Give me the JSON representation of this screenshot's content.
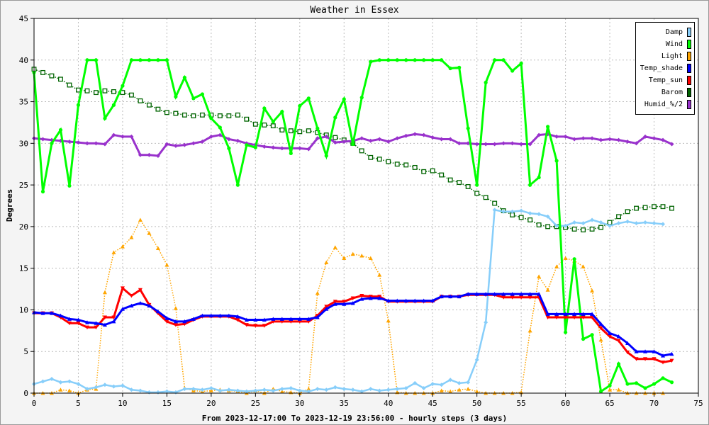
{
  "chart_data": {
    "type": "line",
    "title": "Weather in Essex",
    "xlabel": "From 2023-12-17:00 To 2023-12-19 23:56:00 - hourly steps (3 days)",
    "ylabel": "Degrees",
    "xlim": [
      0,
      75
    ],
    "ylim": [
      0,
      45
    ],
    "xticks": [
      0,
      5,
      10,
      15,
      20,
      25,
      30,
      35,
      40,
      45,
      50,
      55,
      60,
      65,
      70,
      75
    ],
    "yticks": [
      0,
      5,
      10,
      15,
      20,
      25,
      30,
      35,
      40,
      45
    ],
    "grid": true,
    "legend_position": "top-right",
    "series": [
      {
        "name": "Damp",
        "color": "#87cefa",
        "style": "solid",
        "marker": "diamond",
        "values": [
          1.1,
          1.4,
          1.7,
          1.3,
          1.4,
          1.1,
          0.5,
          0.7,
          1.0,
          0.8,
          0.9,
          0.4,
          0.3,
          0.1,
          0.1,
          0.2,
          0.1,
          0.5,
          0.5,
          0.4,
          0.6,
          0.3,
          0.4,
          0.3,
          0.2,
          0.3,
          0.4,
          0.3,
          0.5,
          0.6,
          0.3,
          0.2,
          0.5,
          0.4,
          0.7,
          0.5,
          0.4,
          0.2,
          0.5,
          0.3,
          0.4,
          0.5,
          0.6,
          1.2,
          0.6,
          1.1,
          1.0,
          1.6,
          1.2,
          1.3,
          4.0,
          8.5,
          22.0,
          21.8,
          21.8,
          21.9,
          21.6,
          21.5,
          21.2,
          20.1,
          20.1,
          20.5,
          20.4,
          20.8,
          20.5,
          20.1,
          20.4,
          20.6,
          20.4,
          20.5,
          20.4,
          20.3
        ]
      },
      {
        "name": "Wind",
        "color": "#00ff00",
        "style": "solid",
        "marker": "dot",
        "values": [
          38.5,
          24.2,
          30.0,
          31.6,
          24.9,
          34.6,
          40.0,
          40.0,
          33.0,
          34.6,
          36.9,
          40.0,
          40.0,
          40.0,
          40.0,
          40.0,
          35.6,
          37.9,
          35.4,
          35.9,
          33.0,
          31.9,
          29.4,
          25.0,
          29.8,
          29.5,
          34.2,
          32.6,
          33.8,
          28.8,
          34.5,
          35.4,
          31.8,
          28.5,
          33.1,
          35.3,
          29.9,
          35.5,
          39.8,
          40.0,
          40.0,
          40.0,
          40.0,
          40.0,
          40.0,
          40.0,
          40.0,
          39.0,
          39.1,
          31.8,
          25.0,
          37.3,
          40.0,
          40.0,
          38.7,
          39.6,
          25.0,
          25.9,
          32.0,
          27.9,
          7.3,
          16.1,
          6.5,
          7.0,
          0.2,
          0.9,
          3.5,
          1.1,
          1.2,
          0.6,
          1.1,
          1.8,
          1.3
        ]
      },
      {
        "name": "Light",
        "color": "#ffa500",
        "style": "dotted",
        "marker": "triangle",
        "values": [
          0.0,
          0.0,
          0.0,
          0.4,
          0.3,
          0.0,
          0.4,
          0.5,
          12.1,
          16.9,
          17.6,
          18.7,
          20.8,
          19.2,
          17.4,
          15.4,
          10.2,
          0.6,
          0.3,
          0.2,
          0.3,
          0.4,
          0.3,
          0.2,
          0.0,
          0.3,
          0.0,
          0.5,
          0.2,
          0.1,
          0.0,
          0.5,
          12.0,
          15.7,
          17.5,
          16.2,
          16.7,
          16.5,
          16.2,
          14.2,
          8.7,
          0.1,
          0.0,
          0.0,
          0.0,
          0.0,
          0.3,
          0.2,
          0.4,
          0.5,
          0.2,
          0.0,
          0.0,
          0.0,
          0.0,
          0.1,
          7.5,
          14.0,
          12.4,
          15.2,
          16.2,
          15.9,
          15.2,
          12.3,
          6.4,
          0.4,
          0.4,
          0.0,
          0.0,
          0.0,
          0.0,
          0.0
        ]
      },
      {
        "name": "Temp_shade",
        "color": "#0000ff",
        "style": "solid",
        "marker": "triangle",
        "values": [
          9.7,
          9.6,
          9.6,
          9.3,
          8.9,
          8.8,
          8.5,
          8.4,
          8.2,
          8.6,
          10.1,
          10.5,
          10.8,
          10.5,
          9.8,
          9.0,
          8.6,
          8.6,
          8.9,
          9.3,
          9.3,
          9.3,
          9.3,
          9.2,
          8.8,
          8.8,
          8.8,
          8.9,
          8.9,
          8.9,
          8.9,
          8.9,
          9.1,
          10.1,
          10.7,
          10.7,
          10.8,
          11.3,
          11.4,
          11.4,
          11.1,
          11.1,
          11.1,
          11.1,
          11.1,
          11.1,
          11.6,
          11.6,
          11.6,
          11.9,
          11.9,
          11.9,
          11.9,
          11.9,
          11.9,
          11.9,
          11.9,
          11.9,
          9.5,
          9.5,
          9.5,
          9.5,
          9.5,
          9.5,
          8.3,
          7.2,
          6.8,
          6.0,
          5.0,
          5.0,
          5.0,
          4.5,
          4.7
        ]
      },
      {
        "name": "Temp_sun",
        "color": "#ff0000",
        "style": "solid",
        "marker": "triangle-down",
        "values": [
          9.6,
          9.6,
          9.6,
          9.1,
          8.4,
          8.4,
          7.9,
          7.9,
          9.1,
          9.1,
          12.6,
          11.7,
          12.4,
          10.6,
          9.6,
          8.6,
          8.2,
          8.3,
          8.8,
          9.2,
          9.2,
          9.2,
          9.2,
          8.8,
          8.2,
          8.1,
          8.1,
          8.6,
          8.6,
          8.6,
          8.6,
          8.6,
          9.3,
          10.4,
          11.0,
          11.0,
          11.4,
          11.7,
          11.6,
          11.6,
          11.0,
          11.0,
          11.0,
          11.0,
          11.0,
          11.0,
          11.6,
          11.6,
          11.6,
          11.8,
          11.8,
          11.8,
          11.8,
          11.5,
          11.5,
          11.5,
          11.5,
          11.5,
          9.1,
          9.1,
          9.1,
          9.1,
          9.1,
          9.1,
          7.8,
          6.8,
          6.3,
          4.9,
          4.1,
          4.1,
          4.1,
          3.7,
          3.9
        ]
      },
      {
        "name": "Barom",
        "color": "#006400",
        "style": "dotted",
        "marker": "square",
        "values": [
          38.9,
          38.5,
          38.1,
          37.7,
          37.0,
          36.4,
          36.3,
          36.1,
          36.3,
          36.2,
          36.1,
          35.8,
          35.1,
          34.6,
          34.1,
          33.7,
          33.6,
          33.4,
          33.3,
          33.4,
          33.4,
          33.3,
          33.3,
          33.4,
          32.9,
          32.3,
          32.2,
          32.1,
          31.6,
          31.5,
          31.4,
          31.5,
          31.3,
          31.0,
          30.7,
          30.4,
          30.0,
          29.1,
          28.3,
          28.1,
          27.8,
          27.5,
          27.4,
          27.1,
          26.6,
          26.7,
          26.2,
          25.6,
          25.3,
          24.8,
          24.0,
          23.5,
          22.8,
          21.9,
          21.4,
          21.1,
          20.8,
          20.2,
          20.0,
          20.0,
          19.9,
          19.7,
          19.6,
          19.7,
          19.9,
          20.5,
          21.2,
          21.8,
          22.2,
          22.3,
          22.4,
          22.4,
          22.2
        ]
      },
      {
        "name": "Humid_%/2",
        "color": "#9932cc",
        "style": "solid",
        "marker": "diamond",
        "values": [
          30.6,
          30.5,
          30.4,
          30.3,
          30.2,
          30.1,
          30.0,
          30.0,
          29.9,
          31.0,
          30.8,
          30.8,
          28.6,
          28.6,
          28.5,
          29.9,
          29.7,
          29.8,
          30.0,
          30.2,
          30.8,
          31.0,
          30.5,
          30.3,
          30.0,
          29.8,
          29.6,
          29.5,
          29.4,
          29.4,
          29.4,
          29.3,
          30.6,
          30.8,
          30.1,
          30.2,
          30.3,
          30.6,
          30.3,
          30.5,
          30.2,
          30.6,
          30.9,
          31.1,
          31.0,
          30.7,
          30.5,
          30.5,
          30.0,
          30.0,
          29.9,
          29.9,
          29.9,
          30.0,
          30.0,
          29.9,
          29.9,
          31.0,
          31.1,
          30.8,
          30.8,
          30.5,
          30.6,
          30.6,
          30.4,
          30.5,
          30.4,
          30.2,
          30.0,
          30.8,
          30.6,
          30.4,
          29.9
        ]
      }
    ]
  }
}
